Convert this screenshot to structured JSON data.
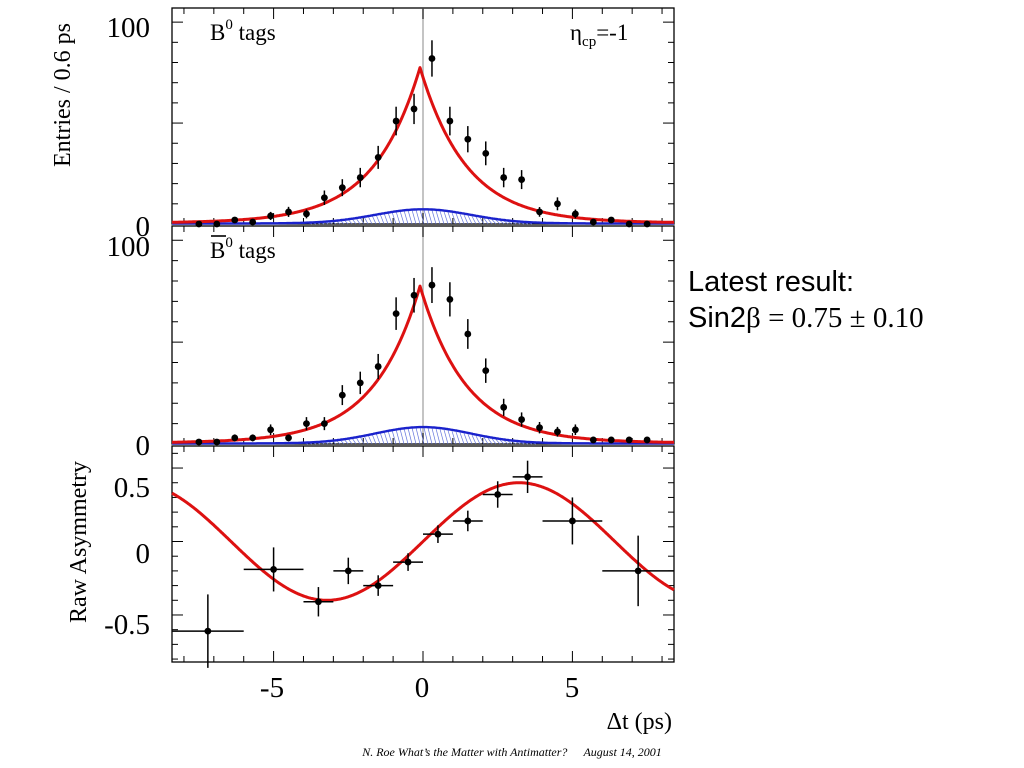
{
  "chart_data": [
    {
      "type": "scatter",
      "panel": "top",
      "label": "B0 tags",
      "label_base": "B",
      "label_sup": "0",
      "label_rest": " tags",
      "annotation_base": "η",
      "annotation_sub": "cp",
      "annotation_rest": "=-1",
      "ylabel": "Entries / 0.6 ps",
      "xlim": [
        -8.4,
        8.4
      ],
      "ylim": [
        0,
        107
      ],
      "y_ticks": [
        0,
        100
      ],
      "y_tick_labels": [
        "0",
        "100"
      ],
      "series": [
        {
          "kind": "data",
          "color": "#000000",
          "x": [
            -7.5,
            -6.9,
            -6.3,
            -5.7,
            -5.1,
            -4.5,
            -3.9,
            -3.3,
            -2.7,
            -2.1,
            -1.5,
            -0.9,
            -0.3,
            0.3,
            0.9,
            1.5,
            2.1,
            2.7,
            3.3,
            3.9,
            4.5,
            5.1,
            5.7,
            6.3,
            6.9,
            7.5
          ],
          "y": [
            0,
            0,
            2,
            1,
            4,
            6,
            5,
            13,
            18,
            23,
            33,
            51,
            57,
            82,
            51,
            42,
            35,
            23,
            22,
            6,
            10,
            5,
            1,
            2,
            0,
            0
          ],
          "yerr": [
            0,
            0,
            1.4,
            1,
            2,
            2.5,
            2.2,
            3.6,
            4.2,
            4.8,
            5.7,
            7.1,
            7.5,
            9,
            7.1,
            6.5,
            5.9,
            4.8,
            4.7,
            2.4,
            3.2,
            2.2,
            1,
            1.4,
            0,
            0
          ]
        },
        {
          "kind": "fit",
          "color": "#dd1111",
          "peak": 77,
          "tau": 1.55,
          "x0": -0.1,
          "floor": 0.5
        },
        {
          "kind": "background",
          "color": "#1a22cc",
          "peak": 7,
          "width": 1.6
        }
      ]
    },
    {
      "type": "scatter",
      "panel": "middle",
      "label": "B̄0 tags",
      "label_base": "B",
      "label_sup": "0",
      "label_rest": " tags",
      "xlim": [
        -8.4,
        8.4
      ],
      "ylim": [
        0,
        107
      ],
      "y_ticks": [
        0,
        100
      ],
      "y_tick_labels": [
        "0",
        "100"
      ],
      "series": [
        {
          "kind": "data",
          "color": "#000000",
          "x": [
            -7.5,
            -6.9,
            -6.3,
            -5.7,
            -5.1,
            -4.5,
            -3.9,
            -3.3,
            -2.7,
            -2.1,
            -1.5,
            -0.9,
            -0.3,
            0.3,
            0.9,
            1.5,
            2.1,
            2.7,
            3.3,
            3.9,
            4.5,
            5.1,
            5.7,
            6.3,
            6.9,
            7.5
          ],
          "y": [
            1,
            1,
            3,
            3,
            7,
            3,
            10,
            10,
            24,
            30,
            38,
            64,
            73,
            78,
            71,
            54,
            36,
            18,
            12,
            8,
            6,
            7,
            2,
            2,
            2,
            2
          ],
          "yerr": [
            1,
            1,
            1.7,
            1.7,
            2.6,
            1.7,
            3.2,
            3.2,
            4.9,
            5.5,
            6.2,
            8,
            8.5,
            8.8,
            8.4,
            7.3,
            6,
            4.2,
            3.5,
            2.8,
            2.4,
            2.6,
            1.4,
            1.4,
            1.4,
            1.4
          ]
        },
        {
          "kind": "fit",
          "color": "#dd1111",
          "peak": 77,
          "tau": 1.55,
          "x0": -0.1,
          "floor": 0.5
        },
        {
          "kind": "background",
          "color": "#1a22cc",
          "peak": 8,
          "width": 1.6
        }
      ]
    },
    {
      "type": "scatter",
      "panel": "bottom",
      "ylabel": "Raw Asymmetry",
      "xlabel": "Δt (ps)",
      "xlim": [
        -8.4,
        8.4
      ],
      "ylim": [
        -0.82,
        0.65
      ],
      "x_ticks": [
        -5,
        0,
        5
      ],
      "x_tick_labels": [
        "-5",
        "0",
        "5"
      ],
      "y_ticks": [
        0.5,
        0,
        -0.5
      ],
      "y_tick_labels": [
        "0.5",
        "0",
        "-0.5"
      ],
      "series": [
        {
          "kind": "data",
          "color": "#000000",
          "x": [
            -7.2,
            -5.0,
            -3.5,
            -2.5,
            -1.5,
            -0.5,
            0.5,
            1.5,
            2.5,
            3.5,
            5.0,
            7.2
          ],
          "y": [
            -0.61,
            -0.19,
            -0.41,
            -0.2,
            -0.3,
            -0.14,
            0.05,
            0.14,
            0.32,
            0.44,
            0.14,
            -0.2
          ],
          "xerr": [
            1.2,
            1.0,
            0.5,
            0.5,
            0.5,
            0.5,
            0.5,
            0.5,
            0.5,
            0.5,
            1.0,
            1.2
          ],
          "yerr": [
            0.25,
            0.15,
            0.1,
            0.09,
            0.07,
            0.06,
            0.06,
            0.07,
            0.09,
            0.11,
            0.16,
            0.24
          ]
        },
        {
          "kind": "fit",
          "color": "#dd1111",
          "amplitude": 0.4,
          "frequency": 0.489
        }
      ]
    }
  ],
  "result": {
    "heading": "Latest result:",
    "prefix": "Sin2",
    "beta": "β",
    "value": " = 0.75 ± 0.10"
  },
  "footer": {
    "author_title": "N. Roe  What’s the Matter with Antimatter?",
    "date": "August 14, 2001"
  }
}
